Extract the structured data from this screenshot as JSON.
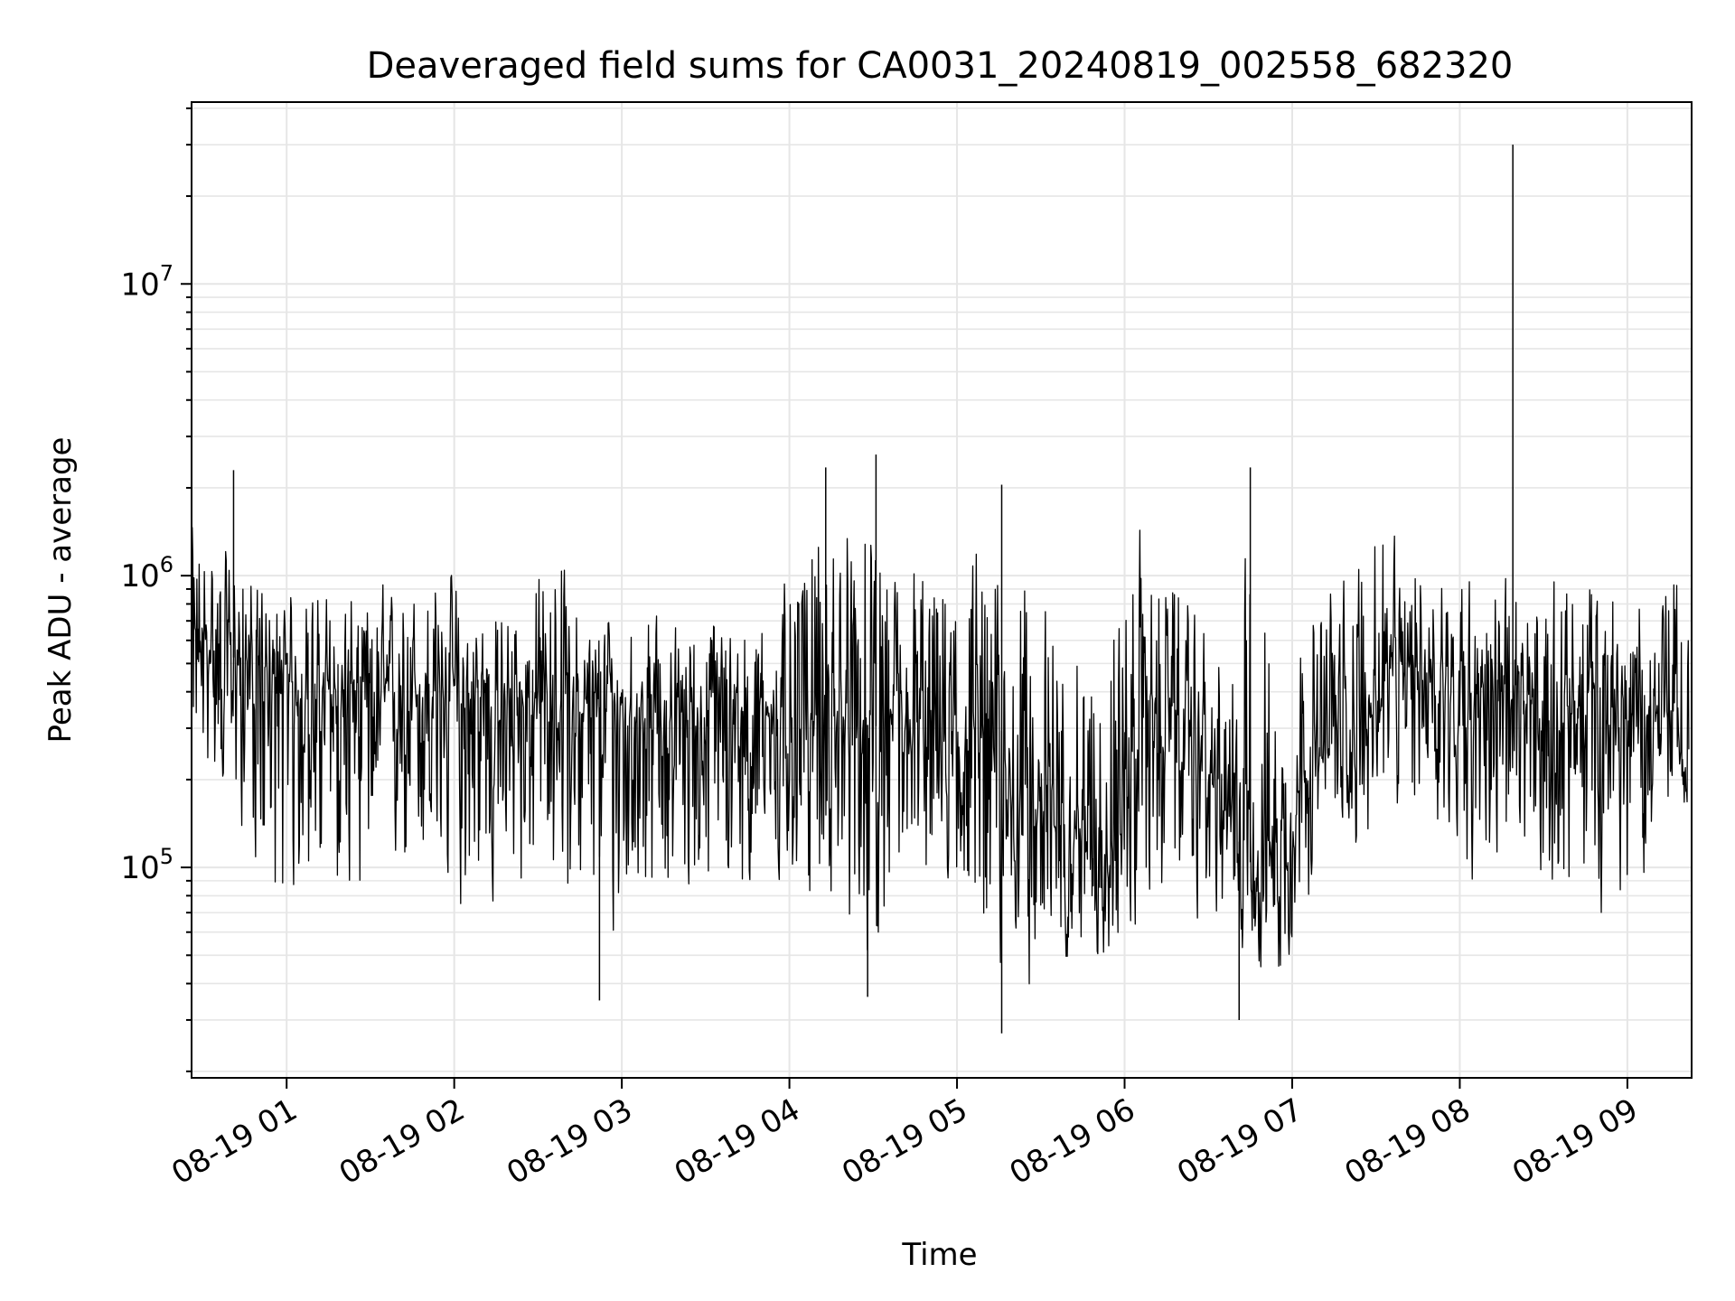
{
  "chart_data": {
    "type": "line",
    "title": "Deaveraged field sums for CA0031_20240819_002558_682320",
    "xlabel": "Time",
    "ylabel": "Peak ADU - average",
    "x_scale": "time",
    "y_scale": "log",
    "xlim": [
      "2024-08-19T00:25:58",
      "2024-08-19T09:23:00"
    ],
    "ylim": [
      19000,
      42000000
    ],
    "grid": true,
    "legend": "none",
    "line_color": "#000000",
    "grid_color": "#e6e6e6",
    "x_ticks": [
      {
        "value": "2024-08-19T01:00:00",
        "label": "08-19 01"
      },
      {
        "value": "2024-08-19T02:00:00",
        "label": "08-19 02"
      },
      {
        "value": "2024-08-19T03:00:00",
        "label": "08-19 03"
      },
      {
        "value": "2024-08-19T04:00:00",
        "label": "08-19 04"
      },
      {
        "value": "2024-08-19T05:00:00",
        "label": "08-19 05"
      },
      {
        "value": "2024-08-19T06:00:00",
        "label": "08-19 06"
      },
      {
        "value": "2024-08-19T07:00:00",
        "label": "08-19 07"
      },
      {
        "value": "2024-08-19T08:00:00",
        "label": "08-19 08"
      },
      {
        "value": "2024-08-19T09:00:00",
        "label": "08-19 09"
      }
    ],
    "y_ticks": [
      {
        "value": 100000,
        "label": "10",
        "exp": "5"
      },
      {
        "value": 1000000,
        "label": "10",
        "exp": "6"
      },
      {
        "value": 10000000,
        "label": "10",
        "exp": "7"
      }
    ],
    "series": [
      {
        "x": [
          "2024-08-19T00:26:00",
          "2024-08-19T00:36:00",
          "2024-08-19T00:46:00",
          "2024-08-19T00:56:00",
          "2024-08-19T01:06:00",
          "2024-08-19T01:16:00",
          "2024-08-19T01:26:00",
          "2024-08-19T01:36:00",
          "2024-08-19T01:46:00",
          "2024-08-19T01:56:00",
          "2024-08-19T02:06:00",
          "2024-08-19T02:16:00",
          "2024-08-19T02:26:00",
          "2024-08-19T02:36:00",
          "2024-08-19T02:46:00",
          "2024-08-19T02:56:00",
          "2024-08-19T03:06:00",
          "2024-08-19T03:16:00",
          "2024-08-19T03:26:00",
          "2024-08-19T03:36:00",
          "2024-08-19T03:46:00",
          "2024-08-19T03:56:00",
          "2024-08-19T04:06:00",
          "2024-08-19T04:16:00",
          "2024-08-19T04:26:00",
          "2024-08-19T04:36:00",
          "2024-08-19T04:46:00",
          "2024-08-19T04:56:00",
          "2024-08-19T05:06:00",
          "2024-08-19T05:16:00",
          "2024-08-19T05:26:00",
          "2024-08-19T05:36:00",
          "2024-08-19T05:46:00",
          "2024-08-19T05:56:00",
          "2024-08-19T06:06:00",
          "2024-08-19T06:16:00",
          "2024-08-19T06:26:00",
          "2024-08-19T06:36:00",
          "2024-08-19T06:46:00",
          "2024-08-19T06:56:00",
          "2024-08-19T07:06:00",
          "2024-08-19T07:16:00",
          "2024-08-19T07:26:00",
          "2024-08-19T07:36:00",
          "2024-08-19T07:46:00",
          "2024-08-19T07:56:00",
          "2024-08-19T08:06:00",
          "2024-08-19T08:16:00",
          "2024-08-19T08:26:00",
          "2024-08-19T08:36:00",
          "2024-08-19T08:46:00",
          "2024-08-19T08:56:00",
          "2024-08-19T09:06:00",
          "2024-08-19T09:16:00",
          "2024-08-19T09:22:00"
        ],
        "y": [
          600000,
          550000,
          500000,
          450000,
          420000,
          400000,
          420000,
          380000,
          400000,
          410000,
          390000,
          380000,
          370000,
          390000,
          360000,
          350000,
          360000,
          340000,
          330000,
          350000,
          340000,
          330000,
          320000,
          340000,
          310000,
          300000,
          290000,
          310000,
          280000,
          200000,
          170000,
          150000,
          120000,
          110000,
          350000,
          300000,
          260000,
          150000,
          100000,
          120000,
          220000,
          260000,
          300000,
          450000,
          500000,
          420000,
          400000,
          380000,
          360000,
          340000,
          330000,
          320000,
          350000,
          330000,
          200000
        ],
        "min": [
          200000,
          150000,
          110000,
          47000,
          50000,
          55000,
          60000,
          70000,
          65000,
          60000,
          55000,
          58000,
          60000,
          55000,
          45000,
          35000,
          55000,
          58000,
          55000,
          52000,
          60000,
          60000,
          58000,
          55000,
          35000,
          45000,
          55000,
          60000,
          55000,
          27000,
          30000,
          40000,
          45000,
          40000,
          50000,
          55000,
          60000,
          50000,
          45000,
          30000,
          60000,
          90000,
          100000,
          110000,
          120000,
          100000,
          70000,
          65000,
          62000,
          60000,
          62000,
          55000,
          80000,
          150000,
          130000
        ],
        "max": [
          2000000,
          1400000,
          1300000,
          1000000,
          1050000,
          1050000,
          1000000,
          1100000,
          1050000,
          1300000,
          1000000,
          950000,
          1000000,
          1800000,
          900000,
          950000,
          850000,
          800000,
          850000,
          900000,
          900000,
          1000000,
          1700000,
          2300000,
          2600000,
          1500000,
          1800000,
          1400000,
          2000000,
          1500000,
          1200000,
          1000000,
          700000,
          1300000,
          1800000,
          1300000,
          900000,
          600000,
          2300000,
          550000,
          1000000,
          1200000,
          1800000,
          1700000,
          1800000,
          1300000,
          1200000,
          1200000,
          1100000,
          1150000,
          1200000,
          1200000,
          1000000,
          1400000,
          800000
        ],
        "spikes": [
          {
            "x": "2024-08-19T08:19:00",
            "y": 30000000
          },
          {
            "x": "2024-08-19T04:31:00",
            "y": 2600000
          },
          {
            "x": "2024-08-19T04:13:00",
            "y": 2350000
          },
          {
            "x": "2024-08-19T06:45:00",
            "y": 2350000
          },
          {
            "x": "2024-08-19T00:41:00",
            "y": 2300000
          },
          {
            "x": "2024-08-19T05:16:00",
            "y": 2050000
          },
          {
            "x": "2024-08-19T05:16:00",
            "y": 27000
          },
          {
            "x": "2024-08-19T06:41:00",
            "y": 30000
          },
          {
            "x": "2024-08-19T02:52:00",
            "y": 35000
          },
          {
            "x": "2024-08-19T04:28:00",
            "y": 36000
          }
        ]
      }
    ]
  }
}
